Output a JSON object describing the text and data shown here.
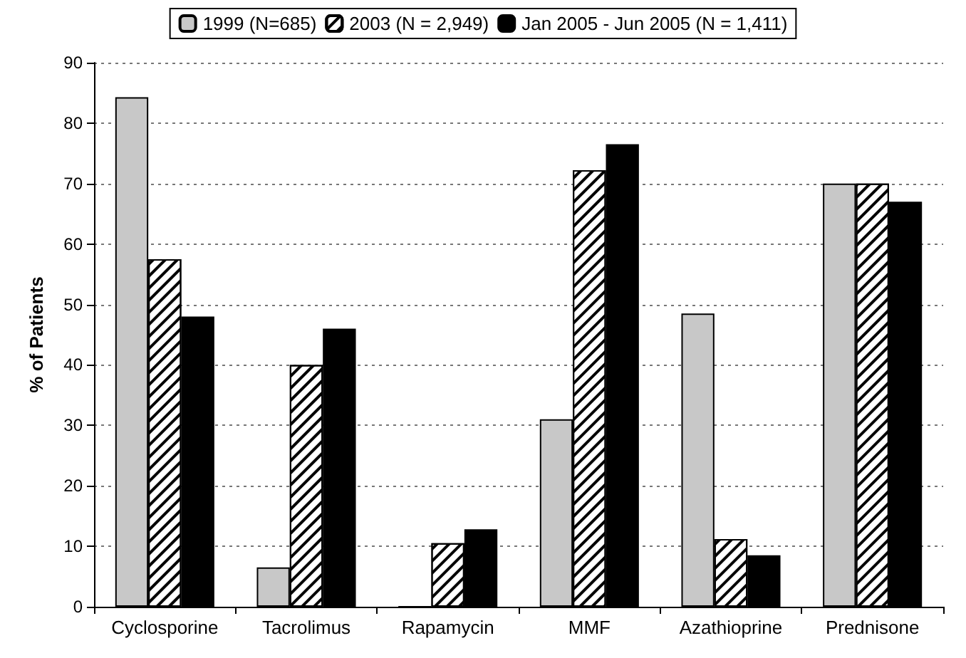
{
  "chart_data": {
    "type": "bar",
    "ylabel": "% of Patients",
    "categories": [
      "Cyclosporine",
      "Tacrolimus",
      "Rapamycin",
      "MMF",
      "Azathioprine",
      "Prednisone"
    ],
    "series": [
      {
        "name": "1999 (N=685)",
        "color": "#c8c8c8",
        "values": [
          84.3,
          6.5,
          0,
          31,
          48.5,
          70
        ]
      },
      {
        "name": "2003 (N = 2,949)",
        "color": "#ffffff",
        "values": [
          57.5,
          40,
          10.5,
          72.2,
          11.2,
          70
        ]
      },
      {
        "name": "Jan 2005 - Jun 2005 (N = 1,411)",
        "color": "#000000",
        "values": [
          48,
          46,
          12.8,
          76.5,
          8.5,
          67
        ]
      }
    ],
    "ylim": [
      0,
      90
    ],
    "yticks": [
      0,
      10,
      20,
      30,
      40,
      50,
      60,
      70,
      80,
      90
    ],
    "grid": "y",
    "legend": "top"
  }
}
